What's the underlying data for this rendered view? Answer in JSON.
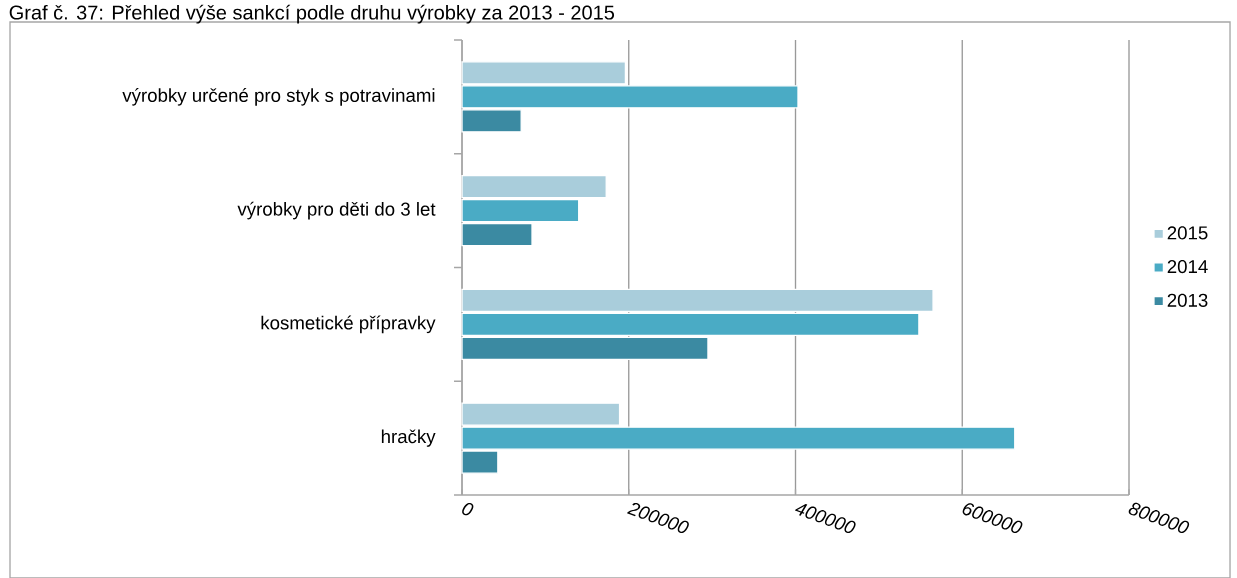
{
  "chart_data": {
    "type": "bar",
    "orientation": "horizontal",
    "title": "Graf č. 37: Přehled výše sankcí podle druhu výrobky za 2013 - 2015",
    "categories": [
      "výrobky určené pro styk s potravinami",
      "výrobky pro děti do 3 let",
      "kosmetické přípravky",
      "hračky"
    ],
    "series": [
      {
        "name": "2015",
        "color": "#a9cddb",
        "values": [
          196000,
          173000,
          565000,
          189000
        ]
      },
      {
        "name": "2014",
        "color": "#4aabc5",
        "values": [
          403000,
          140000,
          548000,
          663000
        ]
      },
      {
        "name": "2013",
        "color": "#3b8aa2",
        "values": [
          71000,
          84000,
          295000,
          43000
        ]
      }
    ],
    "xlim": [
      0,
      800000
    ],
    "xticks": [
      0,
      200000,
      400000,
      600000,
      800000
    ],
    "grid": "x",
    "legend": "right"
  }
}
